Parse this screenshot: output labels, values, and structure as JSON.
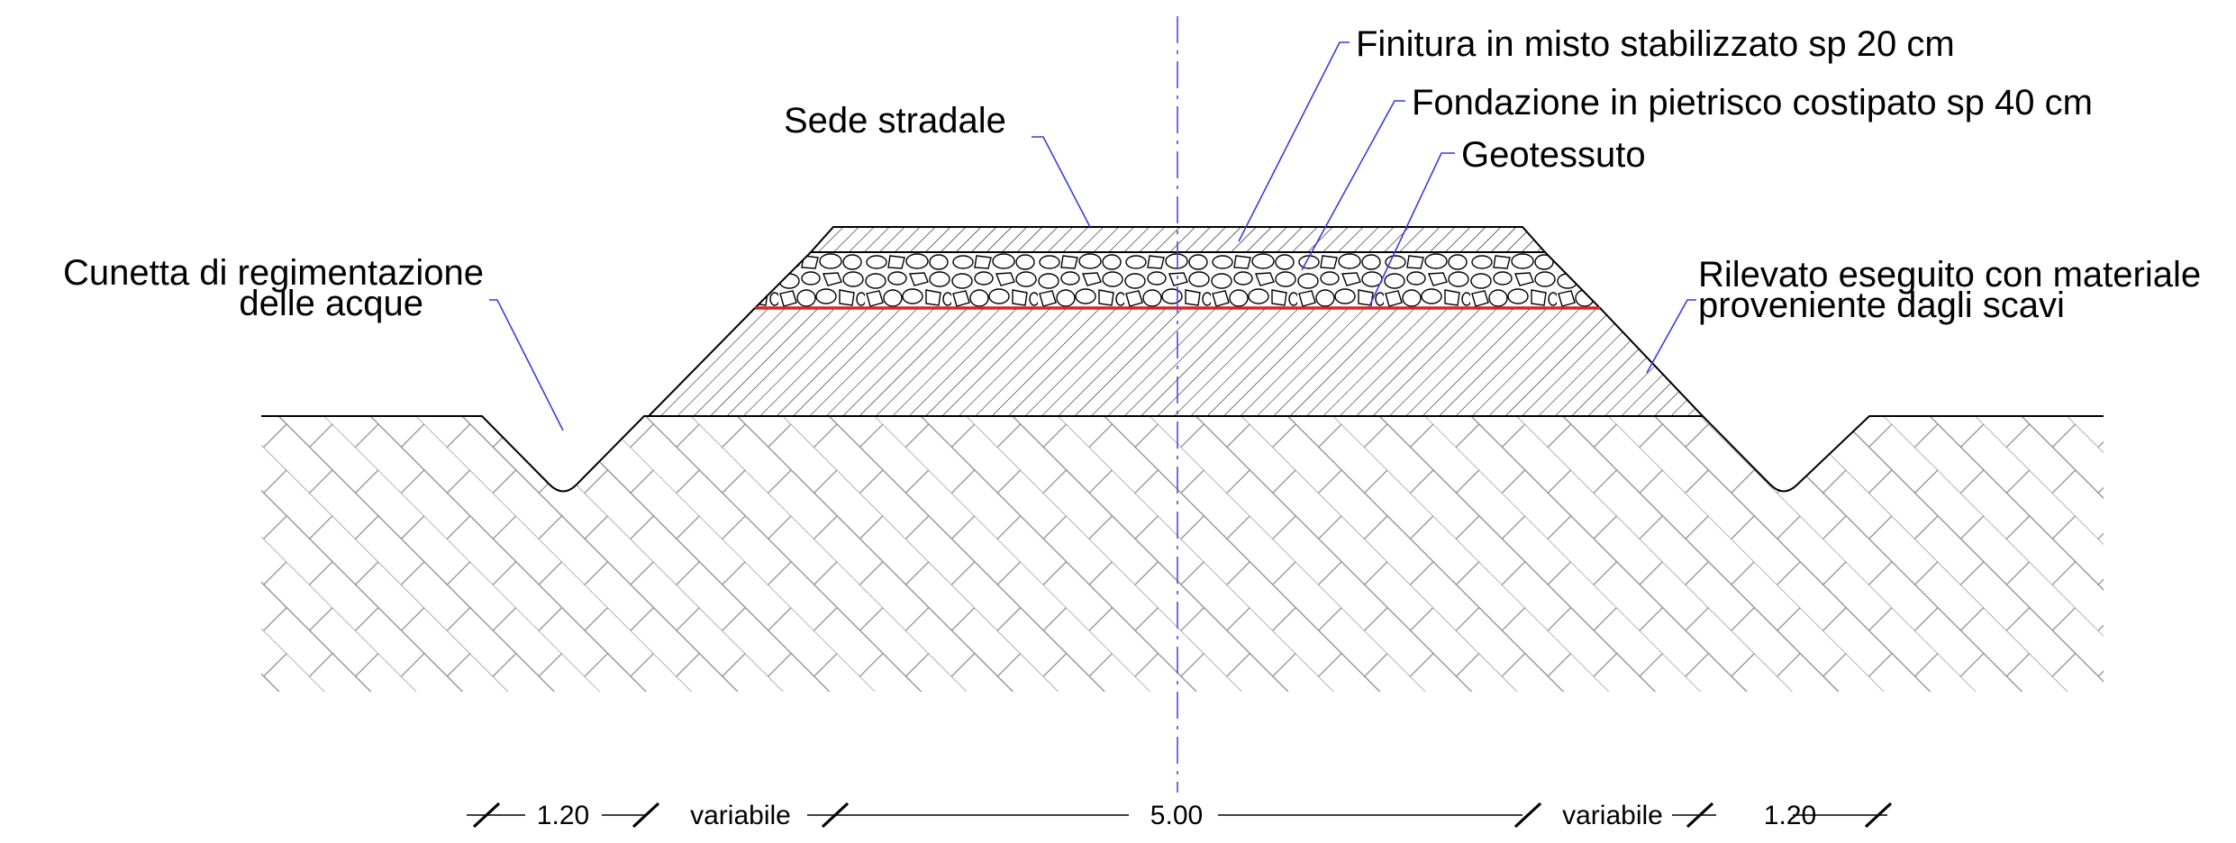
{
  "labels": {
    "finitura": "Finitura in misto stabilizzato sp 20 cm",
    "fondazione": "Fondazione in pietrisco costipato sp 40 cm",
    "geotessuto": "Geotessuto",
    "sede": "Sede stradale",
    "cunetta_line1": "Cunetta di regimentazione",
    "cunetta_line2": "delle acque",
    "rilevato_line1": "Rilevato eseguito con materiale",
    "rilevato_line2": "proveniente dagli scavi"
  },
  "dimensions": {
    "left_ditch": "1.20",
    "left_variable": "variabile",
    "road_width": "5.00",
    "right_variable": "variabile",
    "right_ditch": "1.20"
  },
  "colors": {
    "leader": "#3a3ae6",
    "axis": "#4a4ae6",
    "geotextile": "#e02020",
    "line": "#000000"
  }
}
